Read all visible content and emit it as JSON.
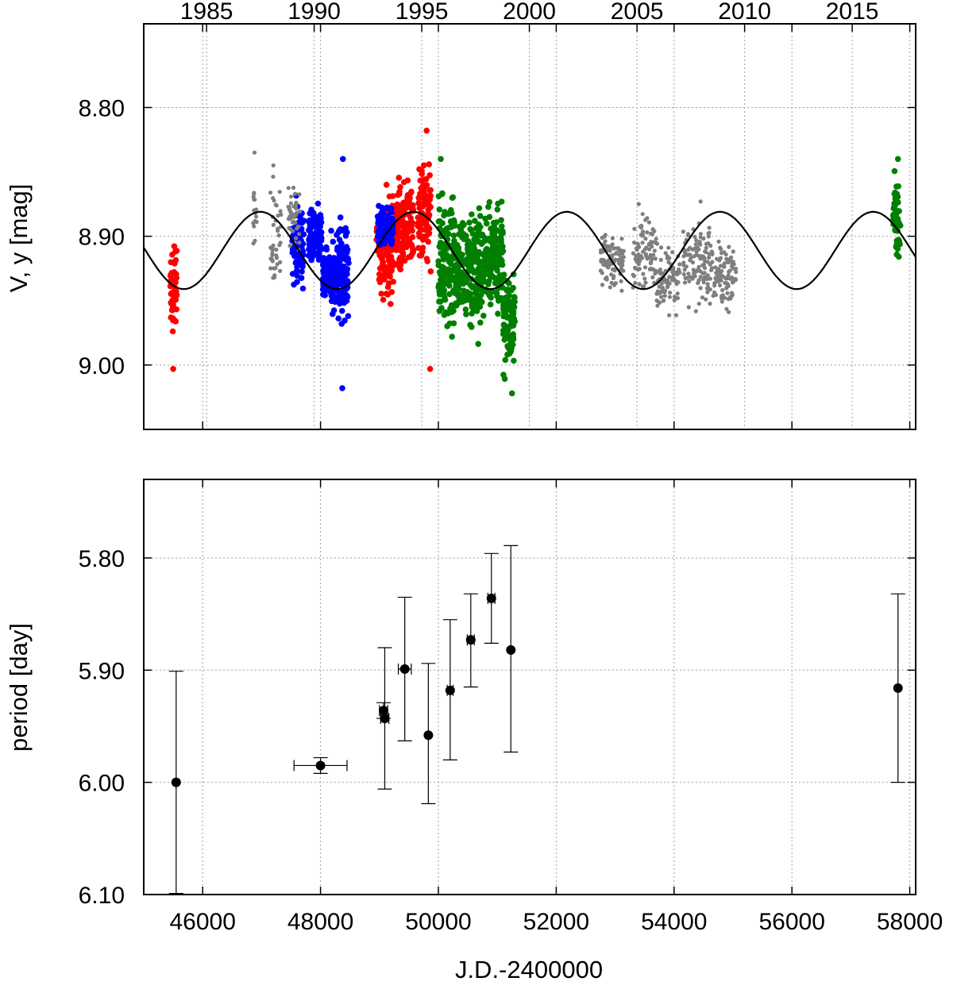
{
  "figure": {
    "x_axis_label": "J.D.-2400000"
  },
  "chart_data": [
    {
      "type": "scatter",
      "name": "light-curve",
      "ylabel": "V, y [mag]",
      "xlim": [
        45000,
        58100
      ],
      "ylim": [
        9.05,
        8.735
      ],
      "y_inverted": true,
      "grid": true,
      "x_ticks": [
        46000,
        48000,
        50000,
        52000,
        54000,
        56000,
        58000
      ],
      "x_tick_labels": [
        "46000",
        "48000",
        "50000",
        "52000",
        "54000",
        "56000",
        "58000"
      ],
      "y_ticks": [
        8.8,
        8.9,
        9.0
      ],
      "y_tick_labels": [
        "8.80",
        "8.90",
        "9.00"
      ],
      "top_year_ticks": [
        {
          "label": "1985",
          "jd": 46066
        },
        {
          "label": "1990",
          "jd": 47892
        },
        {
          "label": "1995",
          "jd": 49718
        },
        {
          "label": "2000",
          "jd": 51544
        },
        {
          "label": "2005",
          "jd": 53371
        },
        {
          "label": "2010",
          "jd": 55197
        },
        {
          "label": "2015",
          "jd": 57023
        }
      ],
      "series": [
        {
          "name": "red",
          "color": "#ff0000",
          "groups": [
            {
              "x": [
                45450,
                45560
              ],
              "y": [
                8.885,
                9.0
              ]
            },
            {
              "x": [
                48950,
                49250
              ],
              "y": [
                8.855,
                8.96
              ]
            },
            {
              "x": [
                49270,
                49580
              ],
              "y": [
                8.845,
                8.94
              ]
            },
            {
              "x": [
                49650,
                49870
              ],
              "y": [
                8.825,
                8.935
              ]
            }
          ],
          "outliers": [
            [
              45500,
              9.003
            ],
            [
              49800,
              8.818
            ],
            [
              49860,
              9.003
            ],
            [
              49120,
              8.86
            ]
          ]
        },
        {
          "name": "blue",
          "color": "#0000ff",
          "groups": [
            {
              "x": [
                47520,
                47720
              ],
              "y": [
                8.865,
                8.95
              ]
            },
            {
              "x": [
                47800,
                48020
              ],
              "y": [
                8.87,
                8.93
              ]
            },
            {
              "x": [
                48040,
                48200
              ],
              "y": [
                8.905,
                8.955
              ]
            },
            {
              "x": [
                48180,
                48480
              ],
              "y": [
                8.88,
                8.98
              ]
            },
            {
              "x": [
                48970,
                49230
              ],
              "y": [
                8.87,
                8.915
              ]
            }
          ],
          "outliers": [
            [
              48380,
              8.84
            ],
            [
              48370,
              9.018
            ]
          ]
        },
        {
          "name": "green",
          "color": "#007f00",
          "groups": [
            {
              "x": [
                50000,
                50280
              ],
              "y": [
                8.845,
                8.99
              ]
            },
            {
              "x": [
                50280,
                50500
              ],
              "y": [
                8.875,
                8.975
              ]
            },
            {
              "x": [
                50500,
                50800
              ],
              "y": [
                8.86,
                8.995
              ]
            },
            {
              "x": [
                50800,
                51100
              ],
              "y": [
                8.865,
                8.97
              ]
            },
            {
              "x": [
                51100,
                51300
              ],
              "y": [
                8.91,
                9.02
              ]
            },
            {
              "x": [
                57720,
                57840
              ],
              "y": [
                8.845,
                8.92
              ]
            }
          ],
          "outliers": [
            [
              50040,
              8.84
            ],
            [
              51250,
              9.022
            ],
            [
              57800,
              8.84
            ]
          ]
        },
        {
          "name": "grey",
          "color": "#7f7f7f",
          "groups": [
            {
              "x": [
                46850,
                46920
              ],
              "y": [
                8.84,
                8.925
              ]
            },
            {
              "x": [
                47150,
                47330
              ],
              "y": [
                8.845,
                8.955
              ]
            },
            {
              "x": [
                47450,
                47650
              ],
              "y": [
                8.855,
                8.92
              ]
            },
            {
              "x": [
                52750,
                53150
              ],
              "y": [
                8.89,
                8.95
              ]
            },
            {
              "x": [
                53300,
                53700
              ],
              "y": [
                8.875,
                8.95
              ]
            },
            {
              "x": [
                53700,
                54100
              ],
              "y": [
                8.9,
                8.965
              ]
            },
            {
              "x": [
                54150,
                54600
              ],
              "y": [
                8.875,
                8.965
              ]
            },
            {
              "x": [
                54600,
                55050
              ],
              "y": [
                8.895,
                8.965
              ]
            }
          ],
          "outliers": [
            [
              46880,
              8.835
            ],
            [
              47200,
              8.845
            ],
            [
              53400,
              8.875
            ],
            [
              54450,
              8.873
            ]
          ]
        }
      ],
      "model_curve": {
        "name": "sinusoidal fit",
        "color": "#000000",
        "mean": 8.911,
        "amplitude": 0.03,
        "period_days": 2600,
        "max_brightness_jd": 46980
      }
    },
    {
      "type": "scatter",
      "name": "period",
      "ylabel": "period [day]",
      "xlabel": "J.D.-2400000",
      "xlim": [
        45000,
        58100
      ],
      "ylim": [
        6.1,
        5.73
      ],
      "y_inverted": true,
      "grid": true,
      "x_ticks": [
        46000,
        48000,
        50000,
        52000,
        54000,
        56000,
        58000
      ],
      "x_tick_labels": [
        "46000",
        "48000",
        "50000",
        "52000",
        "54000",
        "56000",
        "58000"
      ],
      "y_ticks": [
        5.8,
        5.9,
        6.0,
        6.1
      ],
      "y_tick_labels": [
        "5.80",
        "5.90",
        "6.00",
        "6.10"
      ],
      "points": [
        {
          "x": 45550,
          "y": 6.0,
          "xerr": 0,
          "yerr_lo": 5.901,
          "yerr_hi": 6.099
        },
        {
          "x": 48000,
          "y": 5.985,
          "xerr": 450,
          "yerr_lo": 5.978,
          "yerr_hi": 5.992
        },
        {
          "x": 49070,
          "y": 5.936,
          "xerr": 70,
          "yerr_lo": 5.929,
          "yerr_hi": 5.943
        },
        {
          "x": 49090,
          "y": 5.943,
          "xerr": 70,
          "yerr_lo": 5.88,
          "yerr_hi": 6.006
        },
        {
          "x": 49430,
          "y": 5.899,
          "xerr": 110,
          "yerr_lo": 5.835,
          "yerr_hi": 5.963
        },
        {
          "x": 49830,
          "y": 5.958,
          "xerr": 0,
          "yerr_lo": 5.894,
          "yerr_hi": 6.019
        },
        {
          "x": 50200,
          "y": 5.918,
          "xerr": 50,
          "yerr_lo": 5.855,
          "yerr_hi": 5.98
        },
        {
          "x": 50550,
          "y": 5.873,
          "xerr": 60,
          "yerr_lo": 5.832,
          "yerr_hi": 5.915
        },
        {
          "x": 50900,
          "y": 5.836,
          "xerr": 60,
          "yerr_lo": 5.796,
          "yerr_hi": 5.876
        },
        {
          "x": 51230,
          "y": 5.882,
          "xerr": 0,
          "yerr_lo": 5.789,
          "yerr_hi": 5.973
        },
        {
          "x": 57800,
          "y": 5.916,
          "xerr": 0,
          "yerr_lo": 5.832,
          "yerr_hi": 6.0
        }
      ]
    }
  ]
}
